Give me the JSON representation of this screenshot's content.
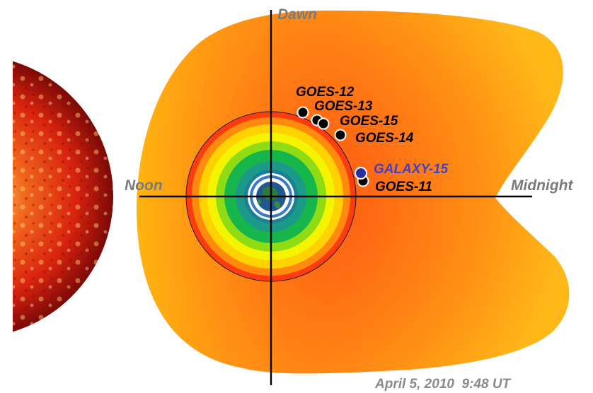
{
  "labels": {
    "dawn": "Dawn",
    "noon": "Noon",
    "midnight": "Midnight"
  },
  "satellites": [
    {
      "name": "GOES-12",
      "highlight": false
    },
    {
      "name": "GOES-13",
      "highlight": false
    },
    {
      "name": "GOES-15",
      "highlight": false
    },
    {
      "name": "GOES-14",
      "highlight": false
    },
    {
      "name": "GALAXY-15",
      "highlight": true
    },
    {
      "name": "GOES-11",
      "highlight": false
    }
  ],
  "timestamp": "April 5, 2010  9:48 UT",
  "colors": {
    "sun_core": "#e8301a",
    "sun_edge": "#7a0505",
    "magnetosphere_outer": "#ffb40e",
    "magnetosphere_inner": "#ff5a12",
    "belt_yellow": "#f7f300",
    "belt_green": "#16b64c",
    "belt_teal": "#1b8a8c",
    "earth_halo": "#ffffff",
    "galaxy_marker": "#2b2f9e",
    "satellite_marker": "#000000",
    "axis": "#000000"
  },
  "icons": {
    "sun": "sun-image",
    "earth": "earth-globe-icon"
  }
}
